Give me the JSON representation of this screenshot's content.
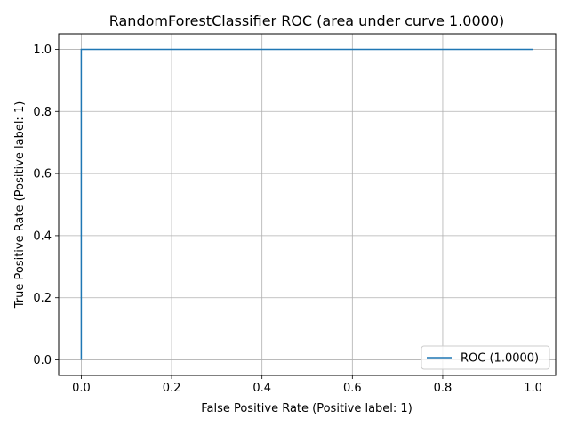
{
  "chart_data": {
    "type": "line",
    "title": "RandomForestClassifier ROC (area under curve 1.0000)",
    "xlabel": "False Positive Rate (Positive label: 1)",
    "ylabel": "True Positive Rate (Positive label: 1)",
    "xlim": [
      -0.05,
      1.05
    ],
    "ylim": [
      -0.05,
      1.05
    ],
    "xticks": [
      0.0,
      0.2,
      0.4,
      0.6,
      0.8,
      1.0
    ],
    "yticks": [
      0.0,
      0.2,
      0.4,
      0.6,
      0.8,
      1.0
    ],
    "xtick_labels": [
      "0.0",
      "0.2",
      "0.4",
      "0.6",
      "0.8",
      "1.0"
    ],
    "ytick_labels": [
      "0.0",
      "0.2",
      "0.4",
      "0.6",
      "0.8",
      "1.0"
    ],
    "grid": true,
    "legend_position": "lower-right",
    "series": [
      {
        "name": "ROC (1.0000)",
        "color": "#1f77b4",
        "x": [
          0.0,
          0.0,
          1.0
        ],
        "y": [
          0.0,
          1.0,
          1.0
        ]
      }
    ]
  }
}
